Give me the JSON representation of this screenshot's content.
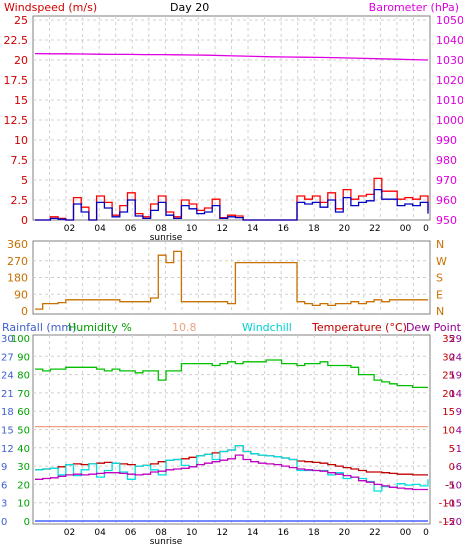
{
  "chart_data": [
    {
      "type": "line",
      "panel": "wind-barometer",
      "title": "Day 20",
      "left_label": "Windspeed (m/s)",
      "right_label": "Barometer (hPa)",
      "left_ticks": [
        "0",
        "2.5",
        "5",
        "7.5",
        "10",
        "12.5",
        "15",
        "17.5",
        "20",
        "22.5",
        "25"
      ],
      "right_ticks": [
        "950",
        "960",
        "970",
        "980",
        "990",
        "1000",
        "1010",
        "1020",
        "1030",
        "1040",
        "1050"
      ],
      "left_tick_values": [
        0,
        2.5,
        5,
        7.5,
        10,
        12.5,
        15,
        17.5,
        20,
        22.5,
        25
      ],
      "ylim_left": [
        0,
        25
      ],
      "ylim_right": [
        950,
        1050
      ],
      "x_ticks": [
        "02",
        "04",
        "06",
        "08",
        "10",
        "12",
        "14",
        "16",
        "18",
        "20",
        "22",
        "00",
        "0"
      ],
      "x_marker": "sunrise",
      "series": [
        {
          "color": "#e000e0",
          "axis": "right",
          "y": [
            1033.2,
            1033.1,
            1033.1,
            1033.0,
            1032.9,
            1032.8,
            1032.8,
            1032.7,
            1032.7,
            1032.6,
            1032.5,
            1032.4,
            1032.2,
            1032.0,
            1031.8,
            1031.6,
            1031.5,
            1031.4,
            1031.3,
            1031.2,
            1031.0,
            1030.8,
            1030.6,
            1030.4,
            1030.2,
            1030.0
          ]
        },
        {
          "color": "#ff0000",
          "axis": "left",
          "y": [
            0,
            0,
            0.4,
            0.2,
            0,
            2.8,
            1.6,
            0,
            3.0,
            2.2,
            0.6,
            1.8,
            3.4,
            0.8,
            0.4,
            2.0,
            3.0,
            1.0,
            0.4,
            2.5,
            2.0,
            1.2,
            1.5,
            2.6,
            0.3,
            0.6,
            0.5,
            0,
            0,
            0,
            0,
            0,
            0,
            0,
            3.0,
            2.6,
            3.0,
            2.2,
            3.4,
            1.4,
            3.8,
            2.6,
            3.0,
            3.2,
            5.2,
            3.6,
            3.6,
            2.6,
            2.8,
            2.6,
            3.0,
            1.2
          ]
        },
        {
          "color": "#0000c0",
          "axis": "left",
          "y": [
            0,
            0,
            0.2,
            0.1,
            0,
            2.0,
            1.0,
            0,
            2.2,
            1.5,
            0.4,
            1.0,
            2.5,
            0.5,
            0.2,
            1.2,
            2.2,
            0.6,
            0.2,
            1.8,
            1.4,
            0.8,
            1.0,
            1.8,
            0.2,
            0.4,
            0.3,
            0,
            0,
            0,
            0,
            0,
            0,
            0,
            2.2,
            2.0,
            2.2,
            1.6,
            2.5,
            1.0,
            2.8,
            1.8,
            2.2,
            2.4,
            3.8,
            2.6,
            2.6,
            1.8,
            2.0,
            1.8,
            2.2,
            0.8
          ]
        }
      ]
    },
    {
      "type": "line",
      "panel": "wind-direction",
      "left_ticks": [
        "0",
        "90",
        "180",
        "270",
        "360"
      ],
      "left_tick_values": [
        0,
        90,
        180,
        270,
        360
      ],
      "compass": [
        "N",
        "W",
        "S",
        "E",
        "N"
      ],
      "ylim": [
        0,
        360
      ],
      "series": [
        {
          "color": "#c87000",
          "y": [
            10,
            40,
            40,
            45,
            60,
            60,
            60,
            60,
            60,
            60,
            60,
            50,
            50,
            50,
            50,
            70,
            300,
            260,
            320,
            50,
            50,
            50,
            50,
            50,
            50,
            40,
            260,
            260,
            260,
            260,
            260,
            260,
            260,
            260,
            50,
            40,
            30,
            40,
            30,
            40,
            40,
            50,
            40,
            50,
            60,
            50,
            60,
            60,
            60,
            60,
            60,
            60
          ]
        }
      ]
    },
    {
      "type": "line",
      "panel": "temperature-humidity",
      "legend": [
        "Rainfall (mm)",
        "Humidity %",
        "10.8",
        "Windchill",
        "Temperature (°C)",
        "Dew Point"
      ],
      "rain_ticks": [
        "0",
        "3",
        "6",
        "9",
        "12",
        "15",
        "18",
        "21",
        "24",
        "27",
        "30"
      ],
      "humidity_ticks": [
        "0",
        "10",
        "20",
        "30",
        "40",
        "50",
        "60",
        "70",
        "80",
        "90",
        "100"
      ],
      "temp_ticks": [
        "-15",
        "-10",
        "-5",
        "0",
        "5",
        "10",
        "15",
        "20",
        "25",
        "30",
        "35"
      ],
      "dew_ticks": [
        "-20",
        "-15",
        "-10",
        "-6",
        "-1",
        "4",
        "9",
        "14",
        "19",
        "24",
        "29"
      ],
      "ylim_humidity": [
        0,
        100
      ],
      "ylim_temp": [
        -15,
        35
      ],
      "series": [
        {
          "name": "Humidity %",
          "color": "#00c000",
          "axis": "humidity",
          "y": [
            83,
            82,
            83,
            83,
            84,
            84,
            84,
            84,
            83,
            82,
            83,
            82,
            82,
            81,
            82,
            82,
            77,
            82,
            82,
            86,
            86,
            86,
            86,
            85,
            86,
            87,
            86,
            87,
            87,
            87,
            88,
            88,
            86,
            86,
            85,
            86,
            86,
            87,
            85,
            85,
            85,
            84,
            80,
            80,
            77,
            76,
            75,
            74,
            74,
            73,
            73,
            73
          ]
        },
        {
          "name": "10.8",
          "color": "#f0a080",
          "axis": "temp",
          "y": [
            10.8,
            10.8,
            10.8,
            10.8,
            10.8,
            10.8,
            10.8,
            10.8,
            10.8,
            10.8,
            10.8,
            10.8,
            10.8,
            10.8,
            10.8,
            10.8,
            10.8,
            10.8,
            10.8,
            10.8,
            10.8,
            10.8,
            10.8,
            10.8,
            10.8,
            10.8,
            10.8,
            10.8,
            10.8,
            10.8,
            10.8,
            10.8,
            10.8,
            10.8,
            10.8,
            10.8,
            10.8,
            10.8,
            10.8,
            10.8,
            10.8,
            10.8,
            10.8,
            10.8,
            10.8,
            10.8,
            10.8,
            10.8,
            10.8,
            10.8,
            10.8,
            10.8
          ]
        },
        {
          "name": "Temperature (°C)",
          "color": "#c00000",
          "axis": "temp",
          "y": [
            -1.0,
            -0.8,
            -0.6,
            -0.2,
            0.4,
            0.6,
            0.4,
            0.6,
            0.8,
            1.0,
            0.8,
            0.6,
            0.4,
            0.0,
            0.2,
            0.6,
            1.2,
            1.6,
            1.8,
            2.0,
            2.4,
            2.8,
            3.2,
            3.6,
            4.0,
            4.4,
            5.6,
            4.0,
            3.4,
            3.0,
            2.8,
            2.6,
            2.2,
            1.8,
            1.4,
            1.2,
            1.0,
            0.8,
            0.4,
            0.0,
            -0.4,
            -0.8,
            -1.2,
            -1.6,
            -1.6,
            -1.8,
            -2.0,
            -2.2,
            -2.2,
            -2.4,
            -2.4,
            -2.4
          ]
        },
        {
          "name": "Windchill",
          "color": "#00e0e0",
          "axis": "temp",
          "y": [
            -1.0,
            -0.8,
            -0.6,
            -2.4,
            0.4,
            -2.6,
            -1.0,
            0.6,
            -3.0,
            -1.2,
            0.8,
            -1.6,
            -3.6,
            0.0,
            0.2,
            -1.0,
            -2.4,
            1.6,
            1.8,
            0.2,
            -0.2,
            2.8,
            3.2,
            1.8,
            4.0,
            4.4,
            5.6,
            4.0,
            3.4,
            3.0,
            2.8,
            2.6,
            2.2,
            1.8,
            -1.2,
            -1.2,
            -1.2,
            -1.2,
            -2.4,
            -1.8,
            -3.4,
            -3.0,
            -3.4,
            -4.2,
            -6.8,
            -5.6,
            -5.8,
            -4.8,
            -5.2,
            -5.0,
            -5.4,
            -3.6
          ]
        },
        {
          "name": "Dew Point",
          "color": "#c000c0",
          "axis": "temp",
          "y": [
            -3.6,
            -3.4,
            -3.2,
            -2.8,
            -2.4,
            -2.2,
            -2.4,
            -2.2,
            -2.0,
            -1.8,
            -1.8,
            -2.0,
            -2.2,
            -2.4,
            -2.2,
            -1.6,
            -1.4,
            -1.0,
            -0.8,
            -0.6,
            -0.2,
            0.4,
            0.8,
            1.2,
            1.6,
            2.0,
            3.0,
            1.8,
            1.2,
            0.8,
            0.6,
            0.4,
            0.0,
            -0.4,
            -0.8,
            -1.0,
            -1.2,
            -1.4,
            -1.8,
            -2.2,
            -2.6,
            -3.0,
            -4.0,
            -4.4,
            -5.0,
            -5.4,
            -5.8,
            -6.0,
            -6.2,
            -6.4,
            -6.4,
            -6.4
          ]
        },
        {
          "name": "Rainfall (mm)",
          "color": "#2040ff",
          "axis": "rain",
          "y": [
            0,
            0,
            0,
            0,
            0,
            0,
            0,
            0,
            0,
            0,
            0,
            0,
            0,
            0,
            0,
            0,
            0,
            0,
            0,
            0,
            0,
            0,
            0,
            0,
            0,
            0,
            0,
            0,
            0,
            0,
            0,
            0,
            0,
            0,
            0,
            0,
            0,
            0,
            0,
            0,
            0,
            0,
            0,
            0,
            0,
            0,
            0,
            0,
            0,
            0,
            0,
            0
          ]
        }
      ]
    }
  ]
}
